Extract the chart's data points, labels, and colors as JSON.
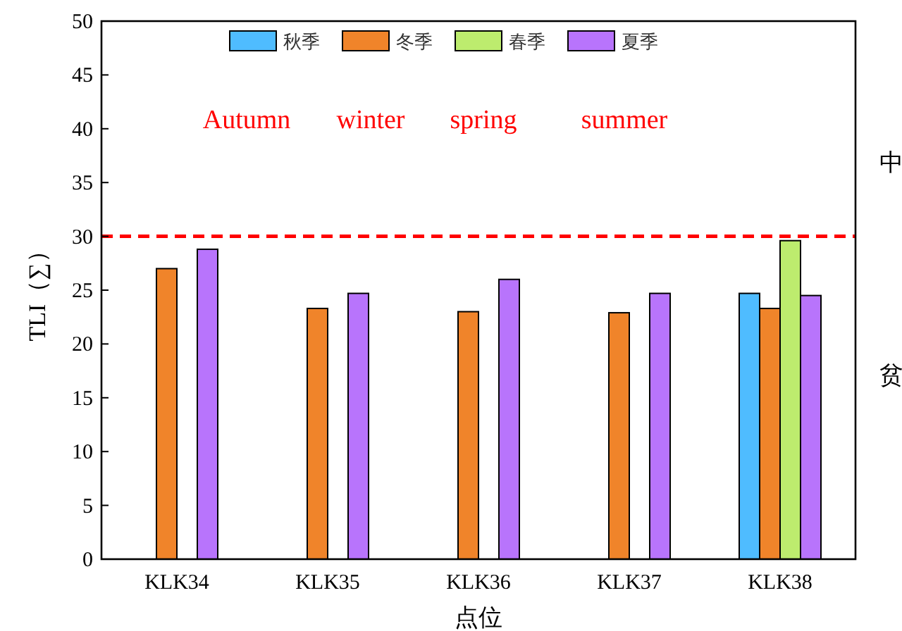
{
  "chart_data": {
    "type": "bar",
    "xlabel": "点位",
    "ylabel": "TLI（∑）",
    "categories": [
      "KLK34",
      "KLK35",
      "KLK36",
      "KLK37",
      "KLK38"
    ],
    "series": [
      {
        "name": "秋季",
        "color": "#4fbcff",
        "values": [
          null,
          null,
          null,
          null,
          24.7
        ]
      },
      {
        "name": "冬季",
        "color": "#f0842a",
        "values": [
          27.0,
          23.3,
          23.0,
          22.9,
          23.3
        ]
      },
      {
        "name": "春季",
        "color": "#bdec6e",
        "values": [
          null,
          null,
          null,
          null,
          29.6
        ]
      },
      {
        "name": "夏季",
        "color": "#b874fc",
        "values": [
          28.8,
          24.7,
          26.0,
          24.7,
          24.5
        ]
      }
    ],
    "ylim": [
      0,
      50
    ],
    "yticks": [
      0,
      5,
      10,
      15,
      20,
      25,
      30,
      35,
      40,
      45,
      50
    ],
    "ref_lines": [
      {
        "axis": "y",
        "value": 30,
        "color": "#ff0000",
        "line_style": "dashed"
      }
    ],
    "annotations": [
      "Autumn",
      "winter",
      "spring",
      "summer",
      "中",
      "贫"
    ],
    "legend": "top",
    "grid": false
  }
}
